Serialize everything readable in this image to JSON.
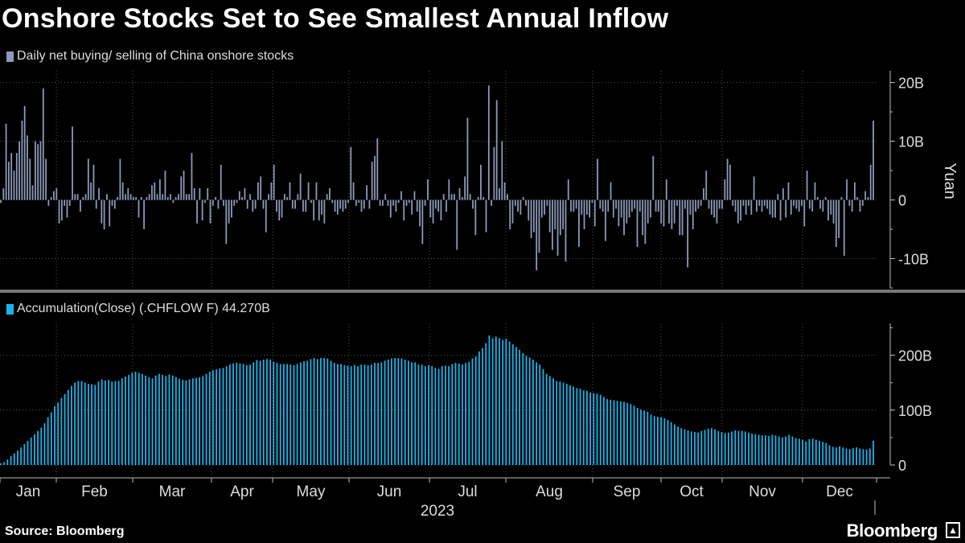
{
  "title": "Onshore Stocks Set to See Smallest Annual Inflow",
  "source": "Source: Bloomberg",
  "brand": "Bloomberg",
  "colors": {
    "top_series": "#8c99b8",
    "bottom_series": "#1ab4ea",
    "grid": "#555555",
    "background": "#000000"
  },
  "chart_data": [
    {
      "type": "bar",
      "title": "",
      "legend": "Daily net buying/ selling of China onshore stocks",
      "ylabel": "Yuan",
      "ylim": [
        -15,
        22
      ],
      "yticks": [
        {
          "value": 20,
          "label": "20B"
        },
        {
          "value": 10,
          "label": "10B"
        },
        {
          "value": 0,
          "label": "0"
        },
        {
          "value": -10,
          "label": "-10B"
        }
      ],
      "unit": "billion yuan",
      "values": [
        -0.5,
        2,
        13,
        6.5,
        8,
        5,
        8,
        10,
        13.5,
        16,
        11,
        7,
        2.5,
        10,
        9.5,
        10,
        19,
        7,
        -1,
        0.5,
        1.5,
        2,
        -4,
        -3.5,
        -1,
        -3,
        -1,
        12.5,
        1,
        1,
        -2,
        0.5,
        1,
        7,
        3,
        6,
        -1.5,
        2,
        -4,
        -5,
        1,
        -4.5,
        -1,
        -1.5,
        0.5,
        7,
        3,
        1,
        2,
        1,
        0.5,
        0.5,
        -3,
        0.5,
        -5,
        0.5,
        1,
        2.5,
        3,
        1,
        3.5,
        1,
        5,
        0.5,
        1,
        -0.5,
        0.5,
        1,
        4,
        5,
        1,
        1,
        8,
        2,
        -4,
        2,
        -3.5,
        -0.5,
        2,
        -4,
        -1,
        0.5,
        -1.5,
        6,
        -1,
        -7.5,
        -4,
        -3,
        -1,
        -0.5,
        1.5,
        0.5,
        2,
        -1.5,
        1,
        -2,
        -1.5,
        3,
        4,
        -1.5,
        -5.5,
        1,
        3,
        6,
        -2,
        -3.5,
        -3,
        1,
        0.5,
        3,
        -1.5,
        -1.5,
        1,
        4.5,
        -2,
        -2,
        3,
        -0.5,
        -3.5,
        3,
        -3.5,
        -2.5,
        -4,
        1,
        2,
        -0.5,
        -2,
        -2.5,
        -1.5,
        -2,
        -1.5,
        -0.5,
        9,
        3,
        -1,
        -0.5,
        -2,
        -1.5,
        2.5,
        -1.5,
        6.5,
        7.5,
        10.5,
        -1,
        -1,
        1,
        -1,
        -3,
        -1,
        -2,
        -0.5,
        1.5,
        -3.5,
        -1,
        -0.5,
        -2.5,
        1.5,
        -2,
        -4.5,
        -7.5,
        -1,
        3.5,
        -3,
        -4,
        -1.5,
        -2,
        -3.5,
        1,
        -2,
        3.5,
        1,
        1,
        -8.5,
        2,
        0.5,
        4,
        14,
        1,
        -1.5,
        -6,
        0.5,
        6,
        0.5,
        -5.5,
        19.5,
        -1,
        9,
        17,
        2,
        10,
        3,
        1,
        -5,
        -4,
        -1,
        -2,
        -2.5,
        0.5,
        -1,
        -3.5,
        -6.5,
        -5.5,
        -12,
        -9,
        -3,
        -2.5,
        -1,
        -5.5,
        -8.5,
        -5,
        -9.5,
        -6,
        -5,
        -10.5,
        3.5,
        -2,
        -2,
        -1.5,
        -8,
        -2.5,
        -5,
        -2.5,
        -3,
        -0.5,
        -4.5,
        7,
        -1.5,
        -2,
        -7,
        -2,
        3,
        -3,
        -1.5,
        -4.5,
        -3,
        -6,
        -4,
        -3,
        -2,
        -1.5,
        -8,
        -2,
        -6,
        -7.5,
        -4,
        -3,
        7.5,
        -2,
        -2,
        -4,
        -4.5,
        3.5,
        -4,
        -5,
        -4,
        -1,
        -6,
        -6,
        -1.5,
        -11.5,
        -2.5,
        -5,
        -2,
        -1.5,
        -1,
        2,
        5,
        -1.5,
        -2.5,
        -3,
        -4,
        -1.5,
        -1.5,
        3.5,
        7,
        6,
        -1,
        -2,
        -4,
        -3.5,
        -1,
        -2.5,
        -1,
        -2.5,
        4,
        -2,
        -1,
        -2,
        -1,
        -1.5,
        -2.5,
        -3,
        -3,
        1,
        -3.5,
        2,
        -3,
        3,
        -2.5,
        -1,
        -1.5,
        -2,
        -1,
        -4.5,
        5,
        -1.5,
        -2,
        3,
        0.5,
        -1.5,
        -2,
        0.5,
        -3.5,
        -2.5,
        -4,
        -8,
        -6.5,
        0.5,
        -9.5,
        3.5,
        -1,
        -2,
        3,
        0.5,
        -2,
        -1,
        1.5,
        0.5,
        6,
        13.5
      ]
    },
    {
      "type": "bar",
      "title": "",
      "legend": "Accumulation(Close) (.CHFLOW F) 44.270B",
      "ylim": [
        0,
        258
      ],
      "yticks": [
        {
          "value": 200,
          "label": "200B"
        },
        {
          "value": 100,
          "label": "100B"
        },
        {
          "value": 0,
          "label": "0"
        }
      ],
      "unit": "billion yuan",
      "values": [
        3,
        5,
        10,
        16,
        21,
        26,
        32,
        38,
        44,
        50,
        56,
        62,
        68,
        76,
        87,
        96,
        107,
        114,
        122,
        129,
        137,
        144,
        150,
        153,
        153,
        150,
        148,
        147,
        146,
        152,
        156,
        154,
        155,
        152,
        153,
        153,
        158,
        161,
        164,
        168,
        170,
        168,
        166,
        163,
        160,
        158,
        163,
        166,
        164,
        162,
        165,
        163,
        160,
        157,
        155,
        154,
        156,
        158,
        159,
        160,
        162,
        166,
        170,
        173,
        174,
        176,
        177,
        180,
        183,
        185,
        186,
        185,
        184,
        182,
        183,
        187,
        191,
        190,
        192,
        193,
        192,
        188,
        186,
        184,
        184,
        184,
        183,
        182,
        184,
        187,
        189,
        190,
        193,
        195,
        193,
        195,
        195,
        194,
        190,
        186,
        184,
        184,
        182,
        181,
        180,
        182,
        180,
        183,
        183,
        182,
        183,
        186,
        186,
        187,
        190,
        192,
        194,
        195,
        195,
        194,
        192,
        190,
        187,
        187,
        183,
        183,
        180,
        182,
        180,
        177,
        175,
        180,
        181,
        180,
        184,
        186,
        185,
        183,
        186,
        188,
        194,
        198,
        207,
        213,
        222,
        236,
        231,
        234,
        231,
        228,
        230,
        225,
        220,
        215,
        210,
        204,
        199,
        196,
        192,
        187,
        183,
        175,
        166,
        162,
        158,
        153,
        152,
        150,
        148,
        145,
        143,
        140,
        139,
        136,
        135,
        132,
        131,
        130,
        128,
        124,
        120,
        119,
        118,
        117,
        116,
        115,
        113,
        111,
        108,
        104,
        101,
        99,
        97,
        92,
        89,
        88,
        87,
        85,
        82,
        78,
        74,
        70,
        67,
        65,
        63,
        61,
        60,
        59,
        62,
        64,
        66,
        67,
        65,
        62,
        60,
        58,
        59,
        61,
        63,
        62,
        62,
        61,
        59,
        57,
        56,
        55,
        54,
        54,
        53,
        55,
        54,
        52,
        50,
        52,
        55,
        52,
        49,
        48,
        46,
        43,
        47,
        48,
        46,
        44,
        42,
        40,
        36,
        33,
        32,
        34,
        32,
        30,
        29,
        31,
        32,
        30,
        29,
        28,
        30,
        44
      ]
    }
  ],
  "x_axis": {
    "months": [
      "Jan",
      "Feb",
      "Mar",
      "Apr",
      "May",
      "Jun",
      "Jul",
      "Aug",
      "Sep",
      "Oct",
      "Nov",
      "Dec"
    ],
    "year": "2023"
  }
}
